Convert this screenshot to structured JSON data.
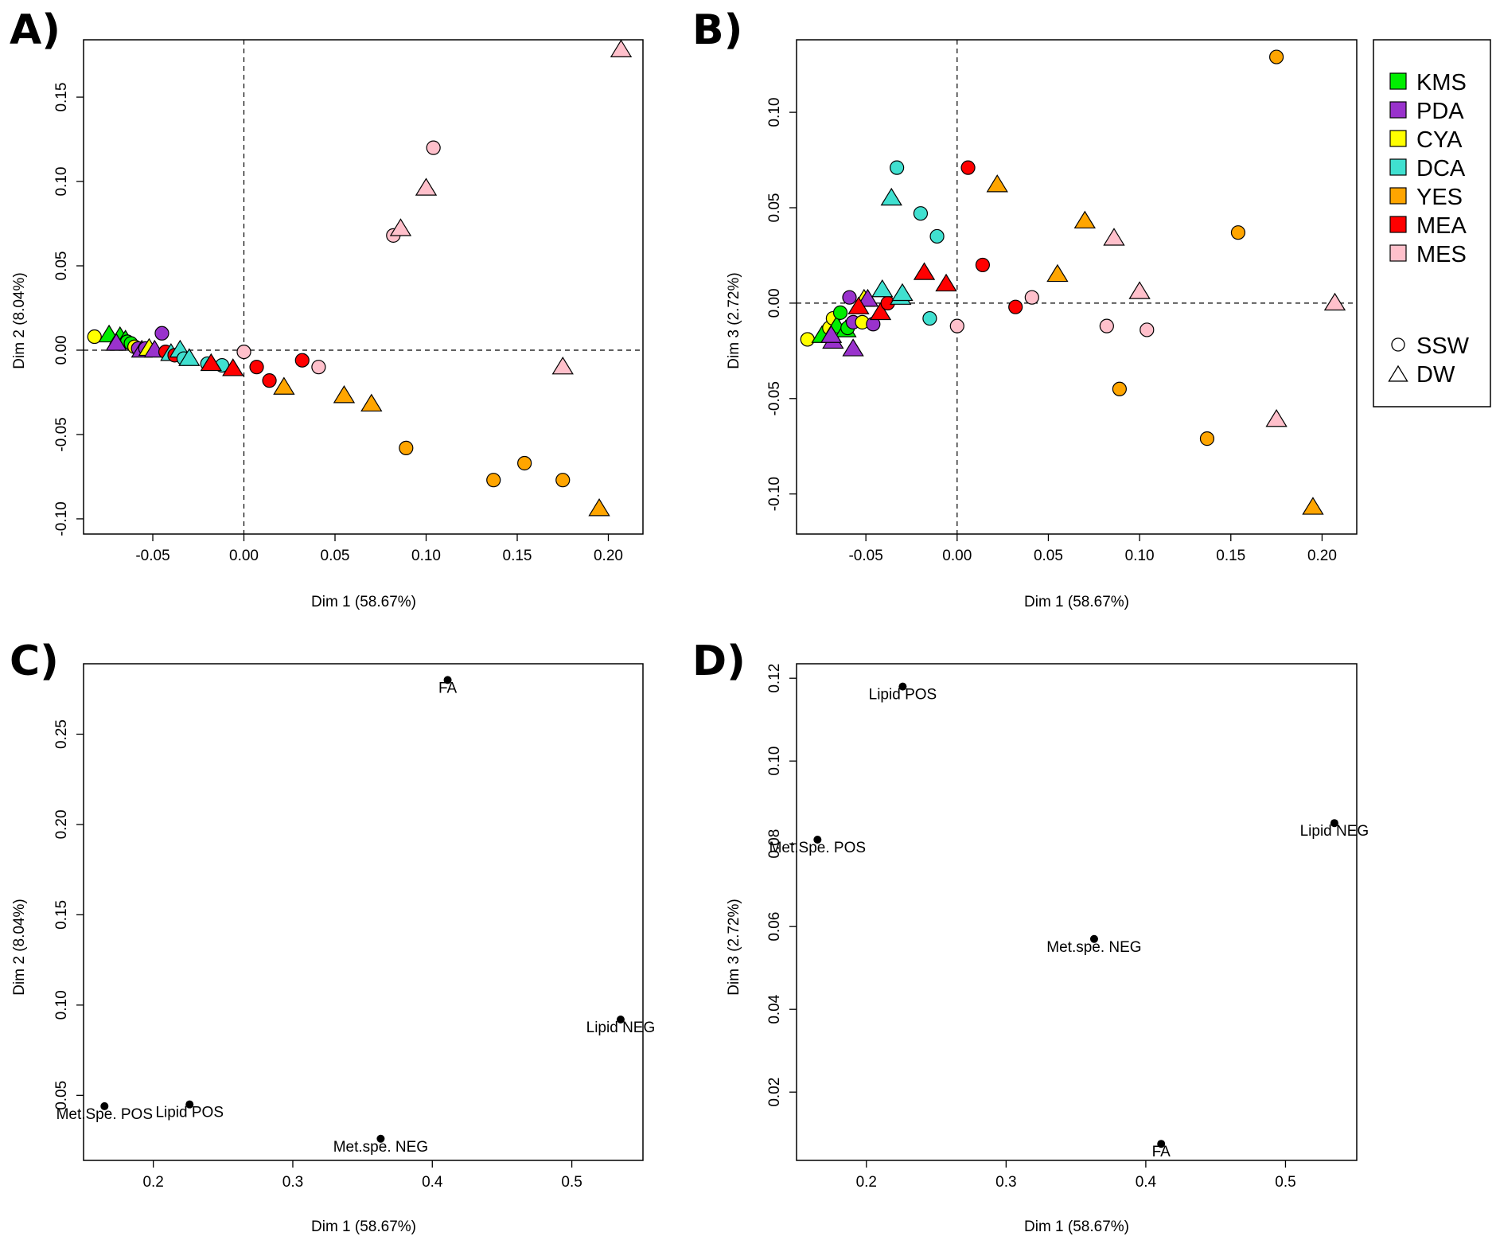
{
  "colors": {
    "KMS": "#00ee00",
    "PDA": "#9932cc",
    "CYA": "#ffff00",
    "DCA": "#40e0d0",
    "YES": "#ffa500",
    "MEA": "#ff0000",
    "MES": "#ffc0cb"
  },
  "legend": {
    "groups": [
      "KMS",
      "PDA",
      "CYA",
      "DCA",
      "YES",
      "MEA",
      "MES"
    ],
    "shapes": [
      {
        "label": "SSW",
        "shape": "circle"
      },
      {
        "label": "DW",
        "shape": "triangle"
      }
    ]
  },
  "chart_data": [
    {
      "panel": "A)",
      "type": "scatter",
      "xlabel": "Dim 1 (58.67%)",
      "ylabel": "Dim 2 (8.04%)",
      "xlim": [
        -0.088,
        0.219
      ],
      "ylim": [
        -0.109,
        0.184
      ],
      "xticks": [
        -0.05,
        0.0,
        0.05,
        0.1,
        0.15,
        0.2
      ],
      "xtick_labels": [
        "-0.05",
        "0.00",
        "0.05",
        "0.10",
        "0.15",
        "0.20"
      ],
      "yticks": [
        -0.1,
        -0.05,
        0.0,
        0.05,
        0.1,
        0.15
      ],
      "ytick_labels": [
        "-0.10",
        "-0.05",
        "0.00",
        "0.05",
        "0.10",
        "0.15"
      ],
      "dashed_zero_lines": true,
      "points": [
        {
          "x": -0.082,
          "y": 0.008,
          "group": "CYA",
          "shape": "circle"
        },
        {
          "x": -0.074,
          "y": 0.009,
          "group": "KMS",
          "shape": "triangle"
        },
        {
          "x": -0.068,
          "y": 0.008,
          "group": "KMS",
          "shape": "triangle"
        },
        {
          "x": -0.065,
          "y": 0.006,
          "group": "KMS",
          "shape": "triangle"
        },
        {
          "x": -0.064,
          "y": 0.005,
          "group": "KMS",
          "shape": "circle"
        },
        {
          "x": -0.062,
          "y": 0.004,
          "group": "KMS",
          "shape": "circle"
        },
        {
          "x": -0.07,
          "y": 0.004,
          "group": "PDA",
          "shape": "triangle"
        },
        {
          "x": -0.06,
          "y": 0.002,
          "group": "CYA",
          "shape": "circle"
        },
        {
          "x": -0.058,
          "y": 0.001,
          "group": "PDA",
          "shape": "circle"
        },
        {
          "x": -0.056,
          "y": 0.0,
          "group": "PDA",
          "shape": "triangle"
        },
        {
          "x": -0.054,
          "y": 0.001,
          "group": "PDA",
          "shape": "circle"
        },
        {
          "x": -0.052,
          "y": 0.001,
          "group": "CYA",
          "shape": "triangle"
        },
        {
          "x": -0.049,
          "y": 0.0,
          "group": "PDA",
          "shape": "triangle"
        },
        {
          "x": -0.045,
          "y": 0.01,
          "group": "PDA",
          "shape": "circle"
        },
        {
          "x": -0.043,
          "y": -0.001,
          "group": "MEA",
          "shape": "circle"
        },
        {
          "x": -0.04,
          "y": -0.002,
          "group": "DCA",
          "shape": "triangle"
        },
        {
          "x": -0.038,
          "y": -0.003,
          "group": "MEA",
          "shape": "circle"
        },
        {
          "x": -0.035,
          "y": 0.0,
          "group": "DCA",
          "shape": "triangle"
        },
        {
          "x": -0.033,
          "y": -0.005,
          "group": "DCA",
          "shape": "circle"
        },
        {
          "x": -0.03,
          "y": -0.005,
          "group": "DCA",
          "shape": "triangle"
        },
        {
          "x": -0.02,
          "y": -0.008,
          "group": "DCA",
          "shape": "circle"
        },
        {
          "x": -0.012,
          "y": -0.009,
          "group": "DCA",
          "shape": "circle"
        },
        {
          "x": -0.018,
          "y": -0.008,
          "group": "MEA",
          "shape": "triangle"
        },
        {
          "x": -0.006,
          "y": -0.011,
          "group": "MEA",
          "shape": "triangle"
        },
        {
          "x": 0.0,
          "y": -0.001,
          "group": "MES",
          "shape": "circle"
        },
        {
          "x": 0.007,
          "y": -0.01,
          "group": "MEA",
          "shape": "circle"
        },
        {
          "x": 0.014,
          "y": -0.018,
          "group": "MEA",
          "shape": "circle"
        },
        {
          "x": 0.022,
          "y": -0.022,
          "group": "YES",
          "shape": "triangle"
        },
        {
          "x": 0.032,
          "y": -0.006,
          "group": "MEA",
          "shape": "circle"
        },
        {
          "x": 0.041,
          "y": -0.01,
          "group": "MES",
          "shape": "circle"
        },
        {
          "x": 0.055,
          "y": -0.027,
          "group": "YES",
          "shape": "triangle"
        },
        {
          "x": 0.07,
          "y": -0.032,
          "group": "YES",
          "shape": "triangle"
        },
        {
          "x": 0.082,
          "y": 0.068,
          "group": "MES",
          "shape": "circle"
        },
        {
          "x": 0.086,
          "y": 0.072,
          "group": "MES",
          "shape": "triangle"
        },
        {
          "x": 0.089,
          "y": -0.058,
          "group": "YES",
          "shape": "circle"
        },
        {
          "x": 0.1,
          "y": 0.096,
          "group": "MES",
          "shape": "triangle"
        },
        {
          "x": 0.104,
          "y": 0.12,
          "group": "MES",
          "shape": "circle"
        },
        {
          "x": 0.137,
          "y": -0.077,
          "group": "YES",
          "shape": "circle"
        },
        {
          "x": 0.154,
          "y": -0.067,
          "group": "YES",
          "shape": "circle"
        },
        {
          "x": 0.175,
          "y": -0.077,
          "group": "YES",
          "shape": "circle"
        },
        {
          "x": 0.175,
          "y": -0.01,
          "group": "MES",
          "shape": "triangle"
        },
        {
          "x": 0.195,
          "y": -0.094,
          "group": "YES",
          "shape": "triangle"
        },
        {
          "x": 0.207,
          "y": 0.178,
          "group": "MES",
          "shape": "triangle"
        }
      ]
    },
    {
      "panel": "B)",
      "type": "scatter",
      "xlabel": "Dim 1 (58.67%)",
      "ylabel": "Dim 3 (2.72%)",
      "xlim": [
        -0.088,
        0.219
      ],
      "ylim": [
        -0.121,
        0.138
      ],
      "xticks": [
        -0.05,
        0.0,
        0.05,
        0.1,
        0.15,
        0.2
      ],
      "xtick_labels": [
        "-0.05",
        "0.00",
        "0.05",
        "0.10",
        "0.15",
        "0.20"
      ],
      "yticks": [
        -0.1,
        -0.05,
        0.0,
        0.05,
        0.1
      ],
      "ytick_labels": [
        "-0.10",
        "-0.05",
        "0.00",
        "0.05",
        "0.10"
      ],
      "dashed_zero_lines": true,
      "points": [
        {
          "x": -0.082,
          "y": -0.019,
          "group": "CYA",
          "shape": "circle"
        },
        {
          "x": -0.074,
          "y": -0.017,
          "group": "KMS",
          "shape": "triangle"
        },
        {
          "x": -0.07,
          "y": -0.013,
          "group": "CYA",
          "shape": "circle"
        },
        {
          "x": -0.068,
          "y": -0.008,
          "group": "CYA",
          "shape": "circle"
        },
        {
          "x": -0.066,
          "y": -0.012,
          "group": "KMS",
          "shape": "triangle"
        },
        {
          "x": -0.064,
          "y": -0.005,
          "group": "KMS",
          "shape": "circle"
        },
        {
          "x": -0.061,
          "y": -0.014,
          "group": "KMS",
          "shape": "triangle"
        },
        {
          "x": -0.06,
          "y": -0.013,
          "group": "KMS",
          "shape": "circle"
        },
        {
          "x": -0.068,
          "y": -0.02,
          "group": "PDA",
          "shape": "triangle"
        },
        {
          "x": -0.069,
          "y": -0.017,
          "group": "PDA",
          "shape": "triangle"
        },
        {
          "x": -0.059,
          "y": 0.003,
          "group": "PDA",
          "shape": "circle"
        },
        {
          "x": -0.057,
          "y": -0.01,
          "group": "PDA",
          "shape": "circle"
        },
        {
          "x": -0.057,
          "y": -0.024,
          "group": "PDA",
          "shape": "triangle"
        },
        {
          "x": -0.052,
          "y": -0.01,
          "group": "CYA",
          "shape": "circle"
        },
        {
          "x": -0.051,
          "y": 0.002,
          "group": "CYA",
          "shape": "triangle"
        },
        {
          "x": -0.049,
          "y": 0.002,
          "group": "PDA",
          "shape": "triangle"
        },
        {
          "x": -0.046,
          "y": -0.011,
          "group": "PDA",
          "shape": "circle"
        },
        {
          "x": -0.054,
          "y": -0.002,
          "group": "MEA",
          "shape": "triangle"
        },
        {
          "x": -0.042,
          "y": -0.005,
          "group": "MEA",
          "shape": "triangle"
        },
        {
          "x": -0.038,
          "y": 0.0,
          "group": "MEA",
          "shape": "circle"
        },
        {
          "x": -0.041,
          "y": 0.007,
          "group": "DCA",
          "shape": "triangle"
        },
        {
          "x": -0.036,
          "y": 0.055,
          "group": "DCA",
          "shape": "triangle"
        },
        {
          "x": -0.033,
          "y": 0.071,
          "group": "DCA",
          "shape": "circle"
        },
        {
          "x": -0.031,
          "y": 0.003,
          "group": "DCA",
          "shape": "triangle"
        },
        {
          "x": -0.03,
          "y": 0.005,
          "group": "DCA",
          "shape": "triangle"
        },
        {
          "x": -0.02,
          "y": 0.047,
          "group": "DCA",
          "shape": "circle"
        },
        {
          "x": -0.011,
          "y": 0.035,
          "group": "DCA",
          "shape": "circle"
        },
        {
          "x": -0.015,
          "y": -0.008,
          "group": "DCA",
          "shape": "circle"
        },
        {
          "x": -0.018,
          "y": 0.016,
          "group": "MEA",
          "shape": "triangle"
        },
        {
          "x": -0.006,
          "y": 0.01,
          "group": "MEA",
          "shape": "triangle"
        },
        {
          "x": 0.0,
          "y": -0.012,
          "group": "MES",
          "shape": "circle"
        },
        {
          "x": 0.006,
          "y": 0.071,
          "group": "MEA",
          "shape": "circle"
        },
        {
          "x": 0.014,
          "y": 0.02,
          "group": "MEA",
          "shape": "circle"
        },
        {
          "x": 0.022,
          "y": 0.062,
          "group": "YES",
          "shape": "triangle"
        },
        {
          "x": 0.032,
          "y": -0.002,
          "group": "MEA",
          "shape": "circle"
        },
        {
          "x": 0.041,
          "y": 0.003,
          "group": "MES",
          "shape": "circle"
        },
        {
          "x": 0.055,
          "y": 0.015,
          "group": "YES",
          "shape": "triangle"
        },
        {
          "x": 0.07,
          "y": 0.043,
          "group": "YES",
          "shape": "triangle"
        },
        {
          "x": 0.082,
          "y": -0.012,
          "group": "MES",
          "shape": "circle"
        },
        {
          "x": 0.086,
          "y": 0.034,
          "group": "MES",
          "shape": "triangle"
        },
        {
          "x": 0.089,
          "y": -0.045,
          "group": "YES",
          "shape": "circle"
        },
        {
          "x": 0.1,
          "y": 0.006,
          "group": "MES",
          "shape": "triangle"
        },
        {
          "x": 0.104,
          "y": -0.014,
          "group": "MES",
          "shape": "circle"
        },
        {
          "x": 0.137,
          "y": -0.071,
          "group": "YES",
          "shape": "circle"
        },
        {
          "x": 0.154,
          "y": 0.037,
          "group": "YES",
          "shape": "circle"
        },
        {
          "x": 0.175,
          "y": 0.129,
          "group": "YES",
          "shape": "circle"
        },
        {
          "x": 0.175,
          "y": -0.061,
          "group": "MES",
          "shape": "triangle"
        },
        {
          "x": 0.195,
          "y": -0.107,
          "group": "YES",
          "shape": "triangle"
        },
        {
          "x": 0.207,
          "y": 0.0,
          "group": "MES",
          "shape": "triangle"
        }
      ]
    },
    {
      "panel": "C)",
      "type": "scatter",
      "xlabel": "Dim 1 (58.67%)",
      "ylabel": "Dim 2 (8.04%)",
      "xlim": [
        0.15,
        0.551
      ],
      "ylim": [
        0.014,
        0.289
      ],
      "xticks": [
        0.2,
        0.3,
        0.4,
        0.5
      ],
      "xtick_labels": [
        "0.2",
        "0.3",
        "0.4",
        "0.5"
      ],
      "yticks": [
        0.05,
        0.1,
        0.15,
        0.2,
        0.25
      ],
      "ytick_labels": [
        "0.05",
        "0.10",
        "0.15",
        "0.20",
        "0.25"
      ],
      "dashed_zero_lines": false,
      "points": [
        {
          "x": 0.165,
          "y": 0.044,
          "label": "Met.Spe. POS"
        },
        {
          "x": 0.226,
          "y": 0.045,
          "label": "Lipid POS"
        },
        {
          "x": 0.363,
          "y": 0.026,
          "label": "Met.spe. NEG"
        },
        {
          "x": 0.411,
          "y": 0.28,
          "label": "FA"
        },
        {
          "x": 0.535,
          "y": 0.092,
          "label": "Lipid NEG"
        }
      ]
    },
    {
      "panel": "D)",
      "type": "scatter",
      "xlabel": "Dim 1 (58.67%)",
      "ylabel": "Dim 3 (2.72%)",
      "xlim": [
        0.15,
        0.551
      ],
      "ylim": [
        0.0035,
        0.1235
      ],
      "xticks": [
        0.2,
        0.3,
        0.4,
        0.5
      ],
      "xtick_labels": [
        "0.2",
        "0.3",
        "0.4",
        "0.5"
      ],
      "yticks": [
        0.02,
        0.04,
        0.06,
        0.08,
        0.1,
        0.12
      ],
      "ytick_labels": [
        "0.02",
        "0.04",
        "0.06",
        "0.08",
        "0.10",
        "0.12"
      ],
      "dashed_zero_lines": false,
      "points": [
        {
          "x": 0.165,
          "y": 0.081,
          "label": "Met.Spe. POS"
        },
        {
          "x": 0.226,
          "y": 0.118,
          "label": "Lipid POS"
        },
        {
          "x": 0.363,
          "y": 0.057,
          "label": "Met.spe. NEG"
        },
        {
          "x": 0.411,
          "y": 0.0075,
          "label": "FA"
        },
        {
          "x": 0.535,
          "y": 0.085,
          "label": "Lipid NEG"
        }
      ]
    }
  ]
}
